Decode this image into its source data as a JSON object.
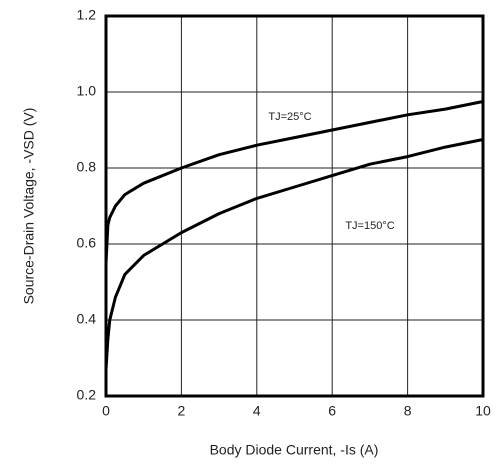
{
  "chart_data": {
    "type": "line",
    "x_label": "Body Diode Current, -Is (A)",
    "y_label": "Source-Drain Voltage, -VSD (V)",
    "xlim": [
      0,
      10
    ],
    "ylim": [
      0.2,
      1.2
    ],
    "xticks": [
      0,
      2,
      4,
      6,
      8,
      10
    ],
    "yticks": [
      0.2,
      0.4,
      0.6,
      0.8,
      {
        "value": 1,
        "label": "1.0"
      },
      1.2
    ],
    "grid": true,
    "x": [
      0,
      0.05,
      0.1,
      0.25,
      0.5,
      1,
      2,
      3,
      4,
      5,
      6,
      7,
      8,
      9,
      10
    ],
    "series": [
      {
        "name": "TJ=25°C",
        "color": "#000000",
        "values": [
          0.55,
          0.65,
          0.67,
          0.7,
          0.73,
          0.76,
          0.8,
          0.835,
          0.86,
          0.88,
          0.9,
          0.92,
          0.94,
          0.955,
          0.975
        ]
      },
      {
        "name": "TJ=150°C",
        "color": "#000000",
        "values": [
          0.27,
          0.35,
          0.4,
          0.46,
          0.52,
          0.57,
          0.63,
          0.68,
          0.72,
          0.75,
          0.78,
          0.81,
          0.83,
          0.855,
          0.875
        ]
      }
    ]
  }
}
